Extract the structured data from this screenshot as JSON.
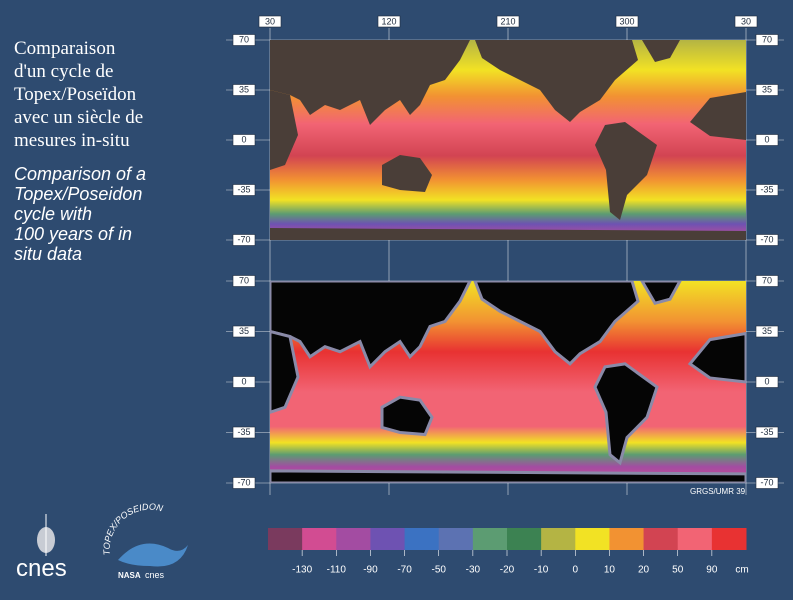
{
  "title_fr": [
    "Comparaison",
    "d'un cycle de",
    "Topex/Poseïdon",
    "avec un siècle de",
    "mesures in-situ"
  ],
  "title_en": [
    "Comparison of a",
    "Topex/Poseidon",
    "cycle with",
    "100 years of in",
    "situ data"
  ],
  "top_axis": [
    30,
    120,
    210,
    300,
    30
  ],
  "lat_axis": [
    70,
    35,
    0,
    -35,
    -70
  ],
  "legend": {
    "colors": [
      "#7a3a5e",
      "#d24c92",
      "#a34ca2",
      "#6e52b2",
      "#3b72c2",
      "#5c72b2",
      "#5c9c72",
      "#3c8252",
      "#b4b444",
      "#f2e224",
      "#f29232",
      "#d24452",
      "#f26474",
      "#e83232"
    ],
    "labels": [
      -130,
      -110,
      -90,
      -70,
      -50,
      -30,
      -20,
      -10,
      0,
      10,
      20,
      50,
      90
    ],
    "unit": "cm"
  },
  "credit": "GRGS/UMR 39",
  "logos": {
    "cnes": "cnes",
    "mission": "TOPEX/POSEIDON",
    "nasa": "NASA",
    "cnes_small": "cnes"
  }
}
